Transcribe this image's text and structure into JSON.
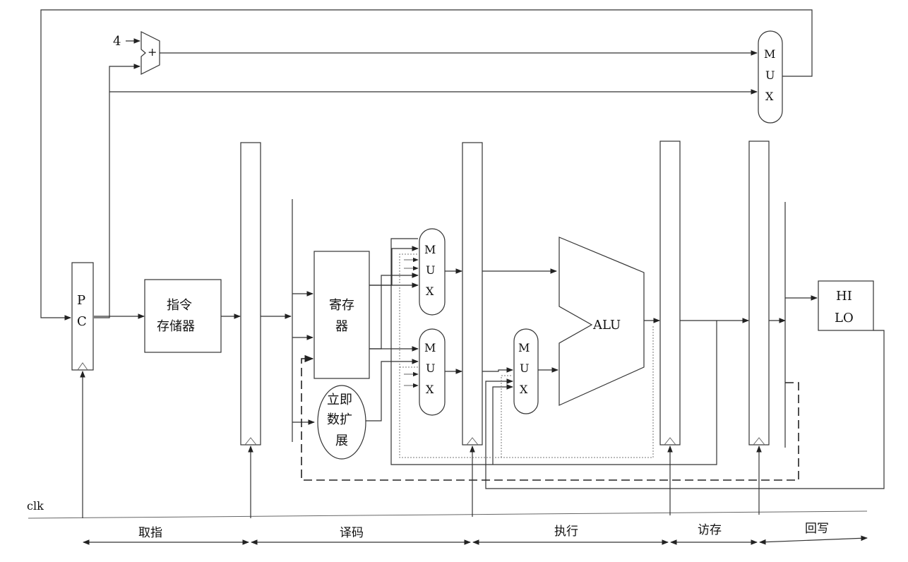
{
  "labels": {
    "pc_top": "P",
    "pc_bottom": "C",
    "const_four": "4",
    "adder_sign": "+",
    "mux_letters": [
      "M",
      "U",
      "X"
    ],
    "instr_mem_line1": "指令",
    "instr_mem_line2": "存储器",
    "regfile_line1": "寄存",
    "regfile_line2": "器",
    "imm_line1": "立即",
    "imm_line2": "数扩",
    "imm_line3": "展",
    "alu": "ALU",
    "hilo_line1": "HI",
    "hilo_line2": "LO",
    "clk": "clk"
  },
  "stages": [
    {
      "key": "fetch",
      "label": "取指"
    },
    {
      "key": "decode",
      "label": "译码"
    },
    {
      "key": "execute",
      "label": "执行"
    },
    {
      "key": "memory",
      "label": "访存"
    },
    {
      "key": "writeback",
      "label": "回写"
    }
  ]
}
